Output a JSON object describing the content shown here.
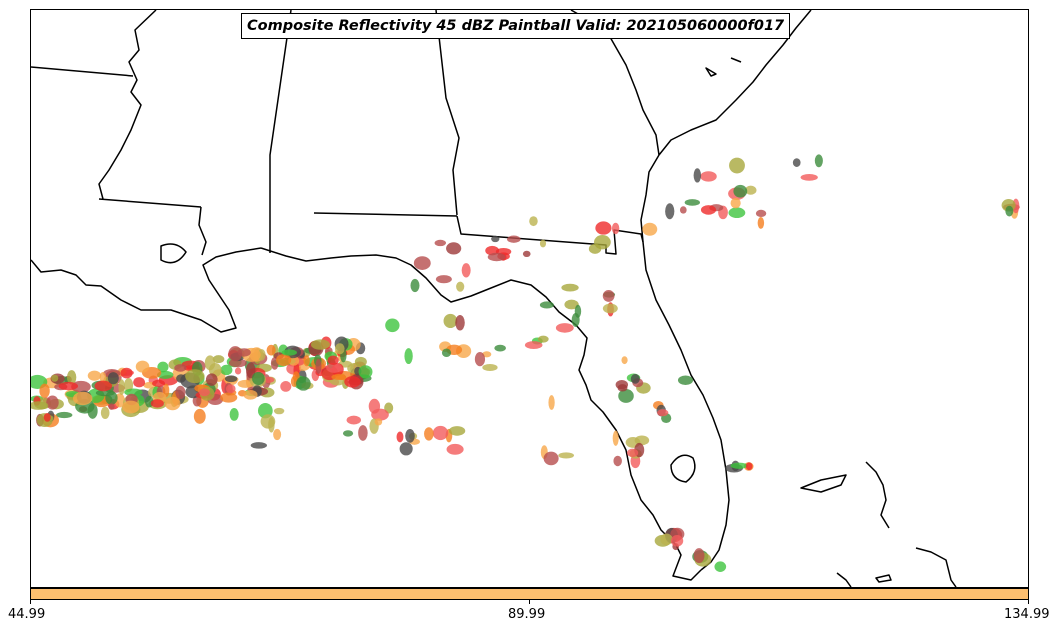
{
  "title": "Composite Reflectivity 45 dBZ Paintball Valid: 202105060000f017",
  "colorbar": {
    "color": "#fdbf6f",
    "ticks": [
      "44.99",
      "89.99",
      "134.99"
    ]
  },
  "member_colors": [
    "#e31a1c",
    "#fb9a99",
    "#ff7f00",
    "#fdbf6f",
    "#33a02c",
    "#8c2d04",
    "#b2df8a",
    "#6a3d9a",
    "#1f78b4",
    "#a6cee3"
  ],
  "palette": {
    "red": "#ef2a2a",
    "light_red": "#f25b5b",
    "orange": "#f57e1f",
    "light_orange": "#f7a84a",
    "olive": "#a8a83c",
    "khaki": "#bcb34f",
    "green": "#3ec43e",
    "dark_green": "#3c8c3c",
    "maroon": "#9e3a3a",
    "rose": "#b64e4e",
    "gray": "#4a4a4a"
  }
}
